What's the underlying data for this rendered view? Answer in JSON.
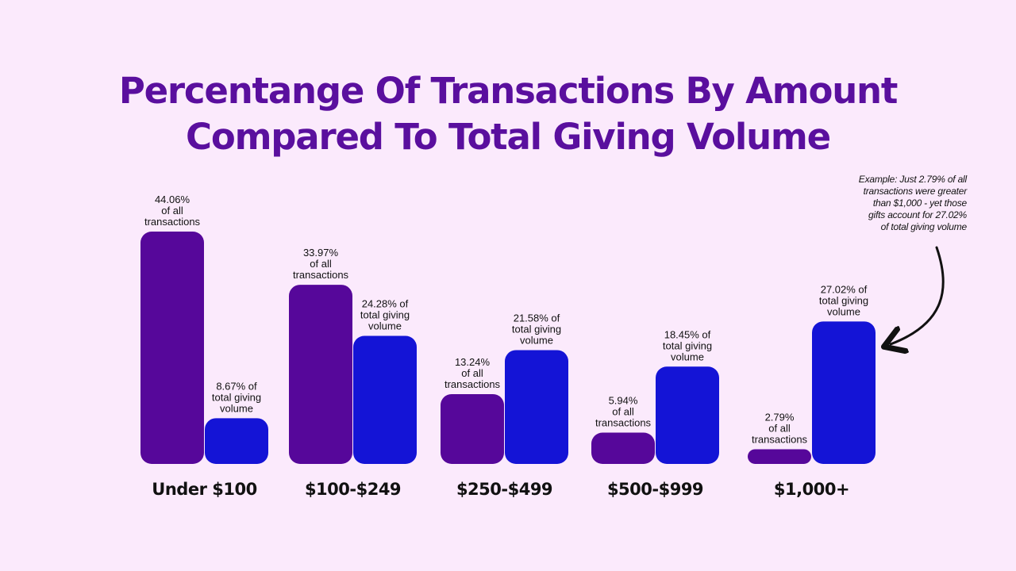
{
  "title": {
    "line1": "Percentange Of Transactions By Amount",
    "line2": "Compared To Total Giving Volume"
  },
  "annotation": {
    "lines": [
      "Example: Just 2.79% of all",
      "transactions were greater",
      "than $1,000 - yet those",
      "gifts account for 27.02%",
      "of total giving volume"
    ]
  },
  "colors": {
    "background": "#fbeafc",
    "title": "#5a0f9e",
    "transactions": "#56079a",
    "volume": "#1414d6",
    "text": "#111111"
  },
  "chart_data": {
    "type": "bar",
    "title": "Percentange Of Transactions By Amount Compared To Total Giving Volume",
    "categories": [
      "Under $100",
      "$100-$249",
      "$250-$499",
      "$500-$999",
      "$1,000+"
    ],
    "series": [
      {
        "name": "of all transactions",
        "values": [
          44.06,
          33.97,
          13.24,
          5.94,
          2.79
        ],
        "labels": [
          [
            "44.06%",
            "of all",
            "transactions"
          ],
          [
            "33.97%",
            "of all",
            "transactions"
          ],
          [
            "13.24%",
            "of all",
            "transactions"
          ],
          [
            "5.94%",
            "of all",
            "transactions"
          ],
          [
            "2.79%",
            "of all",
            "transactions"
          ]
        ]
      },
      {
        "name": "of total giving volume",
        "values": [
          8.67,
          24.28,
          21.58,
          18.45,
          27.02
        ],
        "labels": [
          [
            "8.67% of",
            "total giving",
            "volume"
          ],
          [
            "24.28% of",
            "total giving",
            "volume"
          ],
          [
            "21.58% of",
            "total giving",
            "volume"
          ],
          [
            "18.45% of",
            "total giving",
            "volume"
          ],
          [
            "27.02% of",
            "total giving",
            "volume"
          ]
        ]
      }
    ],
    "xlabel": "",
    "ylabel": "",
    "grid": false,
    "legend": "none"
  }
}
